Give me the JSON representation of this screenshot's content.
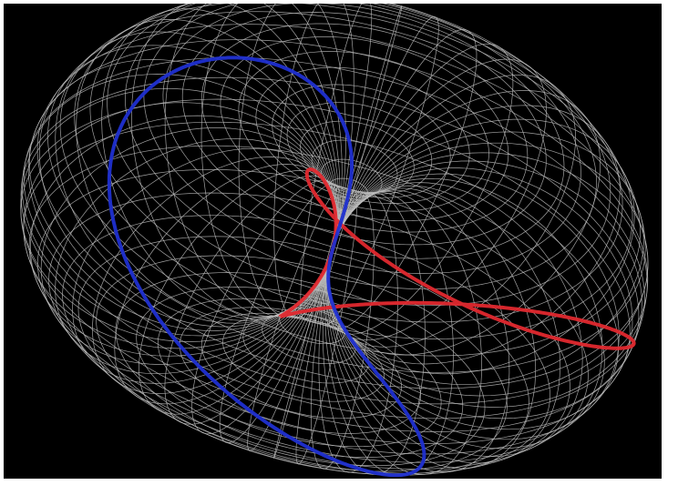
{
  "image": {
    "subject": "wireframe-torus",
    "background_color": "#000000",
    "mesh_color": "#bdbdbd",
    "curve_colors": {
      "red": "#e0282e",
      "blue": "#1f2fd0"
    },
    "mesh": {
      "meridian_count": 52,
      "parallel_count": 48
    },
    "curves": [
      {
        "color_key": "red",
        "winds_around_tube": 1
      },
      {
        "color_key": "blue",
        "winds_around_tube": 1
      }
    ]
  }
}
